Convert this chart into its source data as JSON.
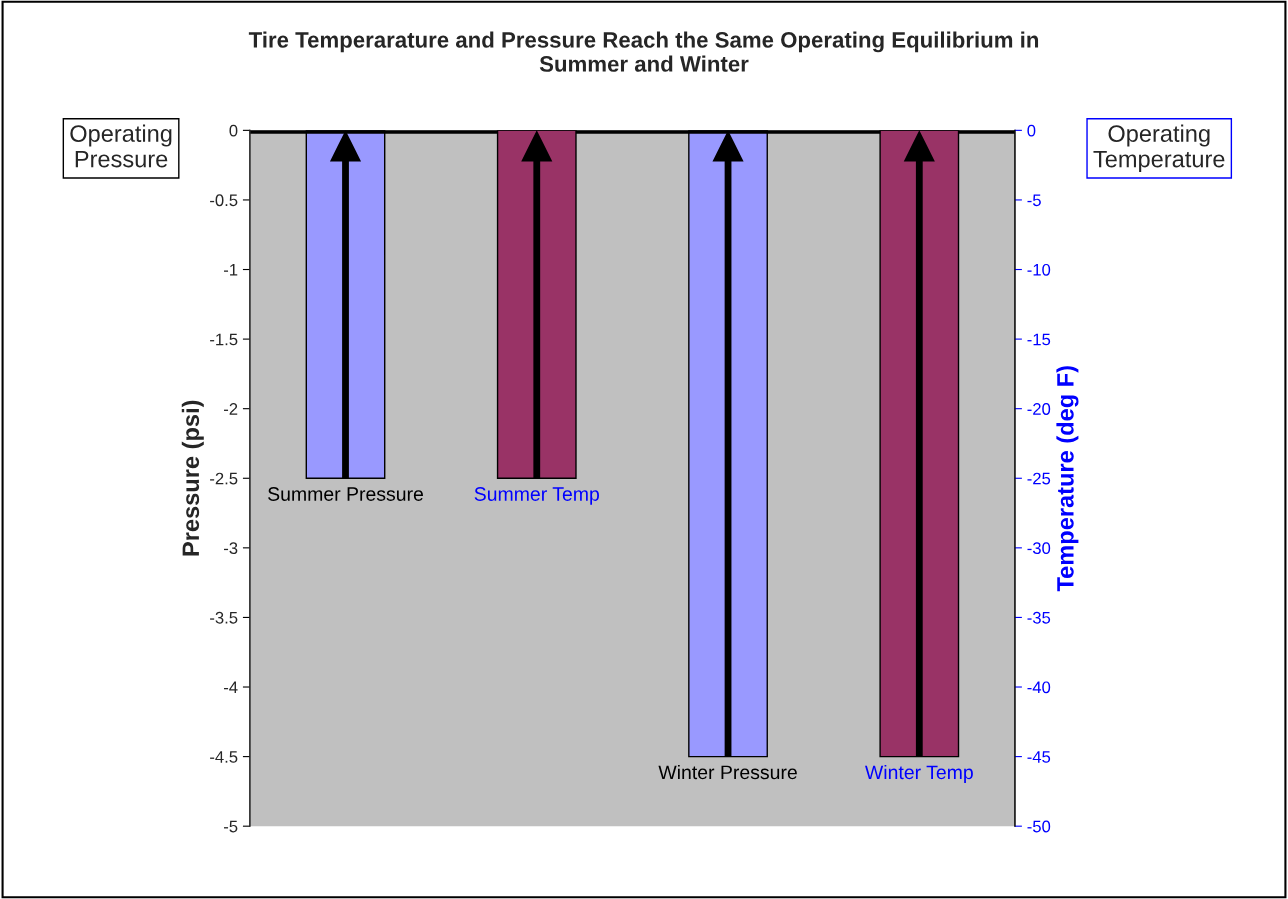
{
  "chart_data": {
    "type": "bar",
    "title": "Tire Temperarature and Pressure Reach the Same Operating Equilibrium in\nSummer and Winter",
    "ylabel": "Pressure (psi)",
    "y2label": "Temperature (deg F)",
    "categories": [
      "Summer Pressure",
      "Summer Temp",
      "Winter Pressure",
      "Winter Temp"
    ],
    "series": [
      {
        "color": "#9999ff",
        "values": [
          -2.5,
          null,
          -4.5,
          null
        ]
      },
      {
        "color": "#993366",
        "axis": "y2",
        "values": [
          null,
          -25,
          null,
          -45
        ]
      }
    ],
    "ylim": [
      -5,
      0
    ],
    "yticks": [
      -5,
      -4.5,
      -4,
      -3.5,
      -3,
      -2.5,
      -2,
      -1.5,
      -1,
      -0.5,
      0
    ],
    "y2lim": [
      -50,
      0
    ],
    "y2ticks": [
      -50,
      -45,
      -40,
      -35,
      -30,
      -25,
      -20,
      -15,
      -10,
      -5,
      0
    ],
    "ref_lines": [
      {
        "axis": "y",
        "value": 0,
        "color": "#000000"
      }
    ],
    "annotations": [
      "Operating\nPressure",
      "Operating\nTemperature"
    ],
    "grid": false,
    "legend": false
  }
}
